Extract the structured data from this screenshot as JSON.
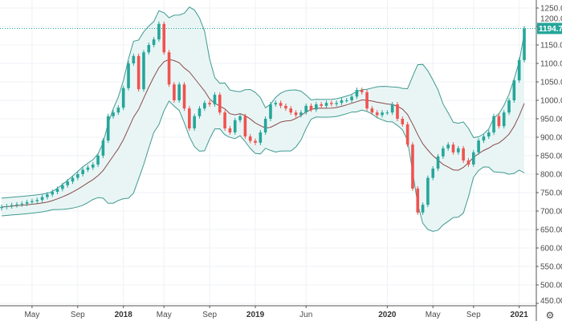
{
  "chart_data": {
    "type": "candlestick",
    "interval": "2 weeks",
    "indicator": "Bollinger Bands",
    "ylim": [
      450,
      1250
    ],
    "y_ticks": [
      "1250.00",
      "1200.00",
      "1150.00",
      "1100.00",
      "1050.00",
      "1000.00",
      "950.00",
      "900.00",
      "850.00",
      "800.00",
      "750.00",
      "700.00",
      "650.00",
      "600.00",
      "550.00",
      "500.00",
      "450.00"
    ],
    "x_ticks": [
      {
        "label": "May",
        "index": 6,
        "bold": false
      },
      {
        "label": "Sep",
        "index": 15,
        "bold": false
      },
      {
        "label": "2018",
        "index": 24,
        "bold": true
      },
      {
        "label": "May",
        "index": 32,
        "bold": false
      },
      {
        "label": "Sep",
        "index": 41,
        "bold": false
      },
      {
        "label": "2019",
        "index": 50,
        "bold": true
      },
      {
        "label": "Jun",
        "index": 60,
        "bold": false
      },
      {
        "label": "2020",
        "index": 76,
        "bold": true
      },
      {
        "label": "May",
        "index": 85,
        "bold": false
      },
      {
        "label": "Sep",
        "index": 93,
        "bold": false
      },
      {
        "label": "2021",
        "index": 102,
        "bold": true
      }
    ],
    "close": [
      711,
      713,
      716,
      718,
      720,
      724,
      727,
      730,
      738,
      745,
      752,
      760,
      770,
      780,
      790,
      800,
      812,
      818,
      826,
      850,
      891,
      957,
      967,
      980,
      1033,
      1100,
      1120,
      1030,
      1130,
      1150,
      1165,
      1207,
      1130,
      1043,
      1000,
      1043,
      978,
      924,
      957,
      978,
      993,
      989,
      1015,
      967,
      924,
      913,
      946,
      957,
      902,
      890,
      885,
      913,
      950,
      989,
      993,
      985,
      978,
      967,
      960,
      967,
      985,
      975,
      989,
      985,
      993,
      990,
      993,
      1000,
      1000,
      1010,
      1028,
      1022,
      978,
      967,
      960,
      967,
      967,
      989,
      950,
      935,
      880,
      761,
      696,
      717,
      790,
      815,
      848,
      870,
      880,
      859,
      870,
      837,
      826,
      859,
      891,
      902,
      913,
      957,
      930,
      967,
      1000,
      1054,
      1109,
      1194.7
    ],
    "last_price": "1194.70",
    "colors": {
      "up": "#26a69a",
      "down": "#ef5350",
      "band": "#3f9a90",
      "band_fill": "#e9f5f5",
      "basis": "#8b4b4b",
      "price_tag": "#26a69a",
      "grid": "#eef1f4"
    }
  },
  "toolbar": {
    "settings_icon": "gear-icon"
  }
}
